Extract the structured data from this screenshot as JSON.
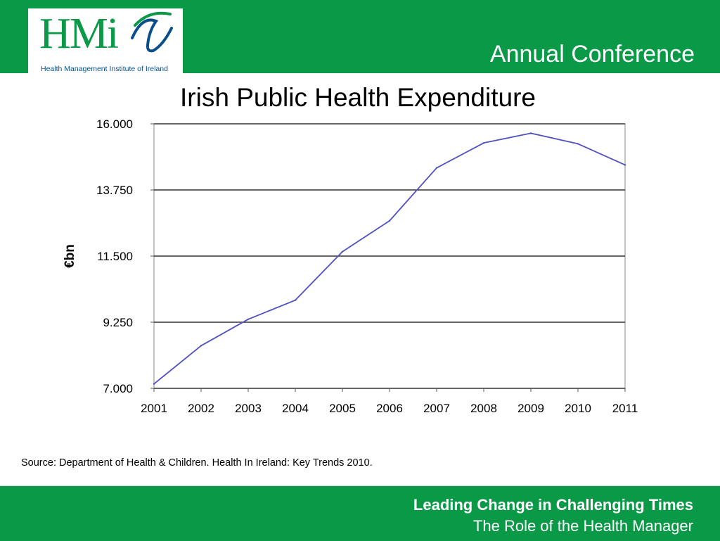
{
  "header": {
    "logo_text": "HMi",
    "logo_subtitle": "Health Management Institute of Ireland",
    "conference_title": "Annual Conference"
  },
  "slide_title": "Irish Public Health Expenditure",
  "source_note": "Source: Department of Health & Children. Health In Ireland: Key Trends 2010.",
  "footer": {
    "tagline": "Leading Change in Challenging Times",
    "subtagline": "The Role of the Health Manager"
  },
  "colors": {
    "brand_green": "#0a9a47",
    "line": "#5050c0",
    "grid": "#333333"
  },
  "chart_data": {
    "type": "line",
    "title": "",
    "xlabel": "",
    "ylabel": "€bn",
    "x": [
      "2001",
      "2002",
      "2003",
      "2004",
      "2005",
      "2006",
      "2007",
      "2008",
      "2009",
      "2010",
      "2011"
    ],
    "series": [
      {
        "values": [
          7.15,
          8.45,
          9.35,
          10.0,
          11.65,
          12.7,
          14.5,
          15.35,
          15.68,
          15.32,
          14.6
        ]
      }
    ],
    "ylim": [
      7.0,
      16.0
    ],
    "yticks": [
      7.0,
      9.25,
      11.5,
      13.75,
      16.0
    ],
    "ytick_labels": [
      "7.000",
      "9.250",
      "11.500",
      "13.750",
      "16.000"
    ],
    "grid": true,
    "legend": "none"
  }
}
